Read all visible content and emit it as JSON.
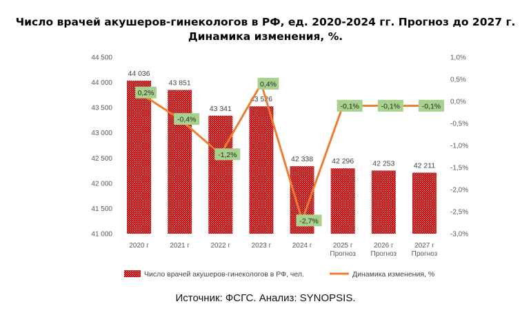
{
  "title_line1": "Число врачей акушеров-гинекологов в РФ, ед. 2020-2024 гг. Прогноз до 2027 г.",
  "title_line2": "Динамика изменения, %.",
  "source": "Источник: ФСГС. Анализ: SYNOPSIS.",
  "colors": {
    "bar": "#c00000",
    "line": "#ed7d31",
    "label_bg": "#a9d18e"
  },
  "chart_data": {
    "type": "bar",
    "categories": [
      [
        "2020 г"
      ],
      [
        "2021 г"
      ],
      [
        "2022 г"
      ],
      [
        "2023 г"
      ],
      [
        "2024 г"
      ],
      [
        "2025 г",
        "Прогноз"
      ],
      [
        "2026 г",
        "Прогноз"
      ],
      [
        "2027 г",
        "Прогноз"
      ]
    ],
    "series": [
      {
        "name": "Число врачей акушеров-гинекологов в РФ, чел.",
        "type": "bar",
        "axis": "left",
        "values": [
          44036,
          43851,
          43341,
          43526,
          42338,
          42296,
          42253,
          42211
        ],
        "labels": [
          "44 036",
          "43 851",
          "43 341",
          "43 526",
          "42 338",
          "42 296",
          "42 253",
          "42 211"
        ]
      },
      {
        "name": "Динамика изменения, %",
        "type": "line",
        "axis": "right",
        "values": [
          0.2,
          -0.4,
          -1.2,
          0.4,
          -2.7,
          -0.1,
          -0.1,
          -0.1
        ],
        "labels": [
          "0,2%",
          "-0,4%",
          "-1,2%",
          "0,4%",
          "-2,7%",
          "-0,1%",
          "-0,1%",
          "-0,1%"
        ]
      }
    ],
    "y_left": {
      "min": 41000,
      "max": 44500,
      "step": 500,
      "ticks": [
        "41 000",
        "41 500",
        "42 000",
        "42 500",
        "43 000",
        "43 500",
        "44 000",
        "44 500"
      ]
    },
    "y_right": {
      "min": -3.0,
      "max": 1.0,
      "step": 0.5,
      "ticks": [
        "-3,0%",
        "-2,5%",
        "-2,0%",
        "-1,5%",
        "-1,0%",
        "-0,5%",
        "0,0%",
        "0,5%",
        "1,0%"
      ]
    },
    "grid": false,
    "legend": "bottom"
  }
}
